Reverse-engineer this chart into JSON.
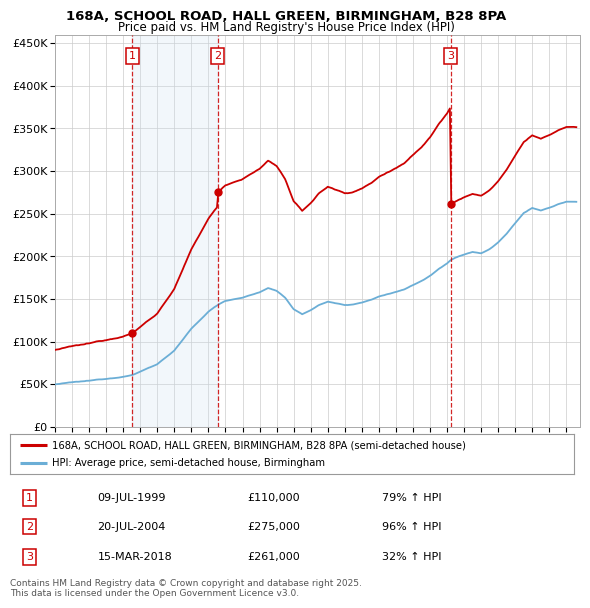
{
  "title1": "168A, SCHOOL ROAD, HALL GREEN, BIRMINGHAM, B28 8PA",
  "title2": "Price paid vs. HM Land Registry's House Price Index (HPI)",
  "legend_line1": "168A, SCHOOL ROAD, HALL GREEN, BIRMINGHAM, B28 8PA (semi-detached house)",
  "legend_line2": "HPI: Average price, semi-detached house, Birmingham",
  "sale1_date": "09-JUL-1999",
  "sale1_price": "£110,000",
  "sale1_hpi": "79% ↑ HPI",
  "sale1_year": 1999.54,
  "sale1_val": 110000,
  "sale2_date": "20-JUL-2004",
  "sale2_price": "£275,000",
  "sale2_hpi": "96% ↑ HPI",
  "sale2_year": 2004.55,
  "sale2_val": 275000,
  "sale3_date": "15-MAR-2018",
  "sale3_price": "£261,000",
  "sale3_hpi": "32% ↑ HPI",
  "sale3_year": 2018.21,
  "sale3_val": 261000,
  "hpi_color": "#6baed6",
  "price_color": "#cc0000",
  "shade_color": "#cce0f0",
  "grid_color": "#cccccc",
  "bg_color": "#ffffff",
  "footnote": "Contains HM Land Registry data © Crown copyright and database right 2025.\nThis data is licensed under the Open Government Licence v3.0.",
  "ylim_max": 460000,
  "xlim_min": 1995.0,
  "xlim_max": 2025.8
}
